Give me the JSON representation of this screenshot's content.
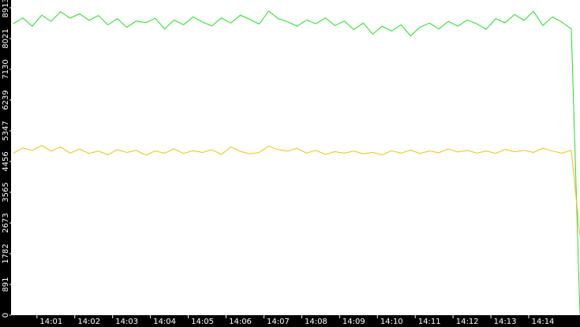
{
  "chart_data": {
    "type": "line",
    "x": [
      840,
      840.25,
      840.5,
      840.75,
      841,
      841.25,
      841.5,
      841.75,
      842,
      842.25,
      842.5,
      842.75,
      843,
      843.25,
      843.5,
      843.75,
      844,
      844.25,
      844.5,
      844.75,
      845,
      845.25,
      845.5,
      845.75,
      846,
      846.25,
      846.5,
      846.75,
      847,
      847.25,
      847.5,
      847.75,
      848,
      848.25,
      848.5,
      848.75,
      849,
      849.25,
      849.5,
      849.75,
      850,
      850.25,
      850.5,
      850.75,
      851,
      851.25,
      851.5,
      851.75,
      852,
      852.25,
      852.5,
      852.75,
      853,
      853.25,
      853.5,
      853.75,
      854,
      854.25,
      854.5,
      854.75,
      854.98
    ],
    "series": [
      {
        "color": "#22dd22",
        "values": [
          8450,
          8620,
          8380,
          8700,
          8520,
          8800,
          8610,
          8740,
          8550,
          8690,
          8420,
          8600,
          8350,
          8530,
          8480,
          8610,
          8300,
          8560,
          8420,
          8650,
          8500,
          8390,
          8620,
          8470,
          8700,
          8580,
          8440,
          8820,
          8600,
          8510,
          8380,
          8560,
          8450,
          8620,
          8400,
          8530,
          8280,
          8470,
          8150,
          8380,
          8240,
          8420,
          8100,
          8350,
          8470,
          8300,
          8520,
          8380,
          8560,
          8450,
          8290,
          8600,
          8480,
          8720,
          8550,
          8810,
          8400,
          8650,
          8500,
          8300,
          0
        ]
      },
      {
        "color": "#f0c010",
        "values": [
          4700,
          4850,
          4780,
          4920,
          4760,
          4880,
          4700,
          4820,
          4690,
          4760,
          4650,
          4800,
          4720,
          4780,
          4640,
          4760,
          4700,
          4820,
          4690,
          4770,
          4720,
          4800,
          4660,
          4880,
          4750,
          4680,
          4720,
          4900,
          4800,
          4760,
          4840,
          4700,
          4780,
          4660,
          4740,
          4700,
          4760,
          4680,
          4720,
          4650,
          4770,
          4700,
          4790,
          4690,
          4760,
          4710,
          4820,
          4730,
          4780,
          4700,
          4760,
          4690,
          4810,
          4740,
          4780,
          4720,
          4840,
          4760,
          4700,
          4780,
          2300
        ]
      }
    ],
    "xlim": [
      839.94,
      854.98
    ],
    "xticks": [
      {
        "value": 841,
        "label": "14:01"
      },
      {
        "value": 842,
        "label": "14:02"
      },
      {
        "value": 843,
        "label": "14:03"
      },
      {
        "value": 844,
        "label": "14:04"
      },
      {
        "value": 845,
        "label": "14:05"
      },
      {
        "value": 846,
        "label": "14:06"
      },
      {
        "value": 847,
        "label": "14:07"
      },
      {
        "value": 848,
        "label": "14:08"
      },
      {
        "value": 849,
        "label": "14:09"
      },
      {
        "value": 850,
        "label": "14:10"
      },
      {
        "value": 851,
        "label": "14:11"
      },
      {
        "value": 852,
        "label": "14:12"
      },
      {
        "value": 853,
        "label": "14:13"
      },
      {
        "value": 854,
        "label": "14:14"
      }
    ],
    "ylim": [
      0,
      9140
    ],
    "yticks": [
      0,
      891,
      1782,
      2673,
      3565,
      4456,
      5347,
      6239,
      7130,
      8021,
      8913
    ],
    "grid": false
  }
}
